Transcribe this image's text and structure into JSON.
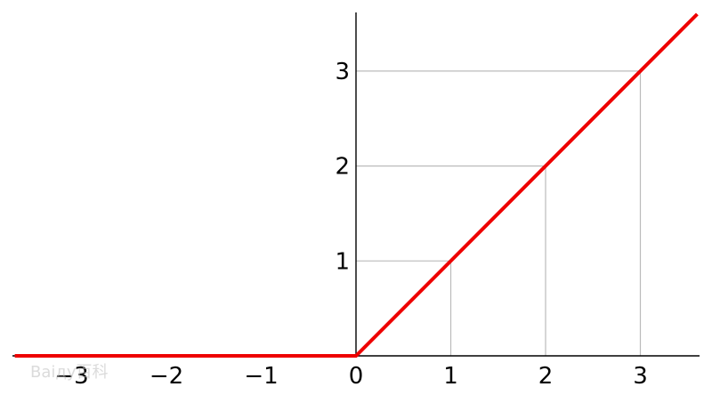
{
  "chart_data": {
    "type": "line",
    "title": "",
    "xlabel": "",
    "ylabel": "",
    "xlim": [
      -3.6,
      3.6
    ],
    "ylim": [
      0,
      3.6
    ],
    "x_ticks": [
      -3,
      -2,
      -1,
      0,
      1,
      2,
      3
    ],
    "x_tick_labels": [
      "−3",
      "−2",
      "−1",
      "0",
      "1",
      "2",
      "3"
    ],
    "y_ticks": [
      1,
      2,
      3
    ],
    "y_tick_labels": [
      "1",
      "2",
      "3"
    ],
    "grid": "drop-lines at integer points on the curve",
    "legend": "none",
    "series": [
      {
        "x": [
          -3.6,
          0,
          3.6
        ],
        "y": [
          0,
          0,
          3.6
        ],
        "color": "#ee0000"
      }
    ],
    "guide_points": [
      [
        1,
        1
      ],
      [
        2,
        2
      ],
      [
        3,
        3
      ]
    ]
  },
  "watermark": {
    "text": "Baiду百科"
  },
  "colors": {
    "axis": "#000000",
    "grid": "#bbbbbb",
    "line": "#ee0000"
  }
}
